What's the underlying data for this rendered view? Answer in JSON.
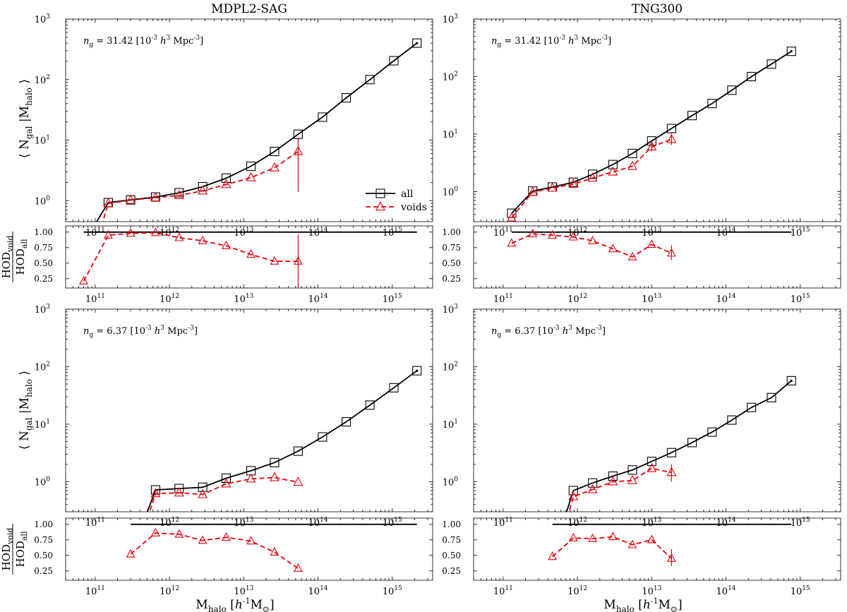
{
  "figure": {
    "x_label_main": "M",
    "x_label_sub": "halo",
    "x_label_unit_pre": " [",
    "x_label_unit_h": "h",
    "x_label_unit_exp": "-1",
    "x_label_unit_M": "M",
    "x_label_unit_sun": "⊙",
    "x_label_unit_post": "]",
    "y_label_main_open": "⟨ N",
    "y_label_main_sub": "gal",
    "y_label_main_mid": " |M",
    "y_label_main_sub2": "halo",
    "y_label_main_close": " ⟩",
    "ratio_num_main": "HOD",
    "ratio_num_sub": "void",
    "ratio_den_main": "HOD",
    "ratio_den_sub": "all",
    "legend_all": "all",
    "legend_voids": "voids",
    "ng_prefix": "n",
    "ng_sub": "g",
    "ng_unit_open": " [10",
    "ng_unit_exp1": "-3",
    "ng_unit_h": "h",
    "ng_unit_exp2": "3",
    "ng_unit_mpc": " Mpc",
    "ng_unit_exp3": "-3",
    "ng_unit_close": "]"
  },
  "colors": {
    "all": "#000000",
    "voids": "#e8000b",
    "axis": "#000000"
  },
  "chart_data": [
    {
      "type": "line",
      "panel": "top-left",
      "title": "MDPL2-SAG",
      "ng_value": "= 31.42",
      "xscale": "log",
      "yscale": "log",
      "xlim": [
        40000000000.0,
        3500000000000000.0
      ],
      "ylim": [
        0.45,
        1000
      ],
      "xticks": [
        "10^11",
        "10^12",
        "10^13",
        "10^14",
        "10^15"
      ],
      "yticks": [
        "10^0",
        "10^1",
        "10^2",
        "10^3"
      ],
      "legend_position": "right",
      "series": [
        {
          "name": "all",
          "x": [
            70000000000.0,
            150000000000.0,
            300000000000.0,
            650000000000.0,
            1350000000000.0,
            2800000000000.0,
            5800000000000.0,
            12500000000000.0,
            26000000000000.0,
            54000000000000.0,
            115000000000000.0,
            240000000000000.0,
            500000000000000.0,
            1050000000000000.0,
            2150000000000000.0
          ],
          "y": [
            0.2,
            0.93,
            1.03,
            1.15,
            1.35,
            1.7,
            2.35,
            3.7,
            6.5,
            12.5,
            24,
            50,
            100,
            205,
            400
          ],
          "markers_from": 1
        },
        {
          "name": "voids",
          "x": [
            70000000000.0,
            150000000000.0,
            300000000000.0,
            650000000000.0,
            1350000000000.0,
            2800000000000.0,
            5800000000000.0,
            12500000000000.0,
            26000000000000.0,
            54000000000000.0
          ],
          "y": [
            0.04,
            0.9,
            1.02,
            1.12,
            1.22,
            1.45,
            1.85,
            2.4,
            3.5,
            6.5
          ],
          "markers_from": 1,
          "errorbars": [
            {
              "x": 54000000000000.0,
              "lo": 1.4,
              "hi": 11
            }
          ]
        }
      ]
    },
    {
      "type": "line",
      "panel": "top-left-ratio",
      "xscale": "log",
      "yscale": "linear",
      "xlim": [
        40000000000.0,
        3500000000000000.0
      ],
      "ylim": [
        0.1,
        1.1
      ],
      "yticks": [
        "0.25",
        "0.50",
        "0.75",
        "1.00"
      ],
      "xticks": [
        "10^11",
        "10^12",
        "10^13",
        "10^14",
        "10^15"
      ],
      "series": [
        {
          "name": "unity",
          "x": [
            70000000000.0,
            2150000000000000.0
          ],
          "y": [
            1.0,
            1.0
          ]
        },
        {
          "name": "voids/all",
          "x": [
            70000000000.0,
            150000000000.0,
            300000000000.0,
            650000000000.0,
            1350000000000.0,
            2800000000000.0,
            5800000000000.0,
            12500000000000.0,
            26000000000000.0,
            54000000000000.0
          ],
          "y": [
            0.21,
            0.95,
            0.98,
            0.99,
            0.91,
            0.86,
            0.78,
            0.64,
            0.53,
            0.53
          ],
          "errorbars": [
            {
              "x": 54000000000000.0,
              "lo": 0.08,
              "hi": 0.96
            }
          ]
        }
      ]
    },
    {
      "type": "line",
      "panel": "top-right",
      "title": "TNG300",
      "ng_value": "= 31.42",
      "xscale": "log",
      "yscale": "log",
      "xlim": [
        40000000000.0,
        3500000000000000.0
      ],
      "ylim": [
        0.3,
        1000
      ],
      "xticks": [
        "10^11",
        "10^12",
        "10^13",
        "10^14",
        "10^15"
      ],
      "yticks": [
        "10^0",
        "10^1",
        "10^2",
        "10^3"
      ],
      "series": [
        {
          "name": "all",
          "x": [
            130000000000.0,
            250000000000.0,
            460000000000.0,
            880000000000.0,
            1600000000000.0,
            3000000000000.0,
            5500000000000.0,
            10000000000000.0,
            18500000000000.0,
            35000000000000.0,
            65000000000000.0,
            120000000000000.0,
            220000000000000.0,
            410000000000000.0,
            760000000000000.0
          ],
          "y": [
            0.42,
            1.02,
            1.2,
            1.45,
            2.0,
            2.95,
            4.6,
            7.6,
            12.5,
            21,
            34,
            58,
            100,
            165,
            275
          ]
        },
        {
          "name": "voids",
          "x": [
            130000000000.0,
            250000000000.0,
            460000000000.0,
            880000000000.0,
            1600000000000.0,
            3000000000000.0,
            5500000000000.0,
            10000000000000.0,
            18500000000000.0
          ],
          "y": [
            0.35,
            0.98,
            1.15,
            1.35,
            1.72,
            2.2,
            2.75,
            6.0,
            8.1
          ],
          "errorbars": [
            {
              "x": 10000000000000.0,
              "lo": 5.0,
              "hi": 7.3
            },
            {
              "x": 18500000000000.0,
              "lo": 6.5,
              "hi": 10.2
            }
          ]
        }
      ]
    },
    {
      "type": "line",
      "panel": "top-right-ratio",
      "xscale": "log",
      "yscale": "linear",
      "xlim": [
        40000000000.0,
        3500000000000000.0
      ],
      "ylim": [
        0.1,
        1.1
      ],
      "yticks": [
        "0.25",
        "0.50",
        "0.75",
        "1.00"
      ],
      "xticks": [
        "10^11",
        "10^12",
        "10^13",
        "10^14",
        "10^15"
      ],
      "series": [
        {
          "name": "unity",
          "x": [
            130000000000.0,
            760000000000000.0
          ],
          "y": [
            1.0,
            1.0
          ]
        },
        {
          "name": "voids/all",
          "x": [
            130000000000.0,
            250000000000.0,
            460000000000.0,
            880000000000.0,
            1600000000000.0,
            3000000000000.0,
            5500000000000.0,
            10000000000000.0,
            18500000000000.0
          ],
          "y": [
            0.82,
            0.97,
            0.95,
            0.92,
            0.86,
            0.73,
            0.6,
            0.8,
            0.66
          ],
          "errorbars": [
            {
              "x": 18500000000000.0,
              "lo": 0.55,
              "hi": 0.79
            }
          ]
        }
      ]
    },
    {
      "type": "line",
      "panel": "bottom-left",
      "ng_value": "= 6.37",
      "xscale": "log",
      "yscale": "log",
      "xlim": [
        40000000000.0,
        3500000000000000.0
      ],
      "ylim": [
        0.3,
        1000
      ],
      "xticks": [
        "10^11",
        "10^12",
        "10^13",
        "10^14",
        "10^15"
      ],
      "yticks": [
        "10^0",
        "10^1",
        "10^2",
        "10^3"
      ],
      "series": [
        {
          "name": "all",
          "x": [
            300000000000.0,
            650000000000.0,
            1350000000000.0,
            2800000000000.0,
            5800000000000.0,
            12500000000000.0,
            26000000000000.0,
            54000000000000.0,
            115000000000000.0,
            240000000000000.0,
            500000000000000.0,
            1050000000000000.0,
            2150000000000000.0
          ],
          "y": [
            0.05,
            0.72,
            0.76,
            0.8,
            1.15,
            1.55,
            2.15,
            3.4,
            6.0,
            11,
            21.5,
            43,
            85
          ],
          "markers_from": 1
        },
        {
          "name": "voids",
          "x": [
            300000000000.0,
            650000000000.0,
            1350000000000.0,
            2800000000000.0,
            5800000000000.0,
            12500000000000.0,
            26000000000000.0,
            54000000000000.0
          ],
          "y": [
            0.03,
            0.62,
            0.64,
            0.6,
            0.92,
            1.12,
            1.18,
            0.98
          ],
          "markers_from": 1
        }
      ]
    },
    {
      "type": "line",
      "panel": "bottom-left-ratio",
      "xscale": "log",
      "yscale": "linear",
      "xlim": [
        40000000000.0,
        3500000000000000.0
      ],
      "ylim": [
        0.1,
        1.1
      ],
      "yticks": [
        "0.25",
        "0.50",
        "0.75",
        "1.00"
      ],
      "xticks": [
        "10^11",
        "10^12",
        "10^13",
        "10^14",
        "10^15"
      ],
      "series": [
        {
          "name": "unity",
          "x": [
            300000000000.0,
            2150000000000000.0
          ],
          "y": [
            1.0,
            1.0
          ]
        },
        {
          "name": "voids/all",
          "x": [
            300000000000.0,
            650000000000.0,
            1350000000000.0,
            2800000000000.0,
            5800000000000.0,
            12500000000000.0,
            26000000000000.0,
            54000000000000.0
          ],
          "y": [
            0.52,
            0.86,
            0.84,
            0.74,
            0.79,
            0.73,
            0.55,
            0.29
          ]
        }
      ]
    },
    {
      "type": "line",
      "panel": "bottom-right",
      "ng_value": "= 6.37",
      "xscale": "log",
      "yscale": "log",
      "xlim": [
        40000000000.0,
        3500000000000000.0
      ],
      "ylim": [
        0.3,
        1000
      ],
      "xticks": [
        "10^11",
        "10^12",
        "10^13",
        "10^14",
        "10^15"
      ],
      "yticks": [
        "10^0",
        "10^1",
        "10^2",
        "10^3"
      ],
      "series": [
        {
          "name": "all",
          "x": [
            460000000000.0,
            880000000000.0,
            1600000000000.0,
            3000000000000.0,
            5500000000000.0,
            10000000000000.0,
            18500000000000.0,
            35000000000000.0,
            65000000000000.0,
            120000000000000.0,
            220000000000000.0,
            410000000000000.0,
            760000000000000.0
          ],
          "y": [
            0.05,
            0.7,
            0.95,
            1.25,
            1.6,
            2.25,
            3.2,
            4.8,
            7.3,
            11.8,
            19.5,
            29,
            57
          ],
          "markers_from": 1
        },
        {
          "name": "voids",
          "x": [
            460000000000.0,
            880000000000.0,
            1600000000000.0,
            3000000000000.0,
            5500000000000.0,
            10000000000000.0,
            18500000000000.0
          ],
          "y": [
            0.03,
            0.55,
            0.73,
            1.0,
            1.05,
            1.7,
            1.45
          ],
          "markers_from": 1,
          "errorbars": [
            {
              "x": 18500000000000.0,
              "lo": 1.0,
              "hi": 2.0
            }
          ]
        }
      ]
    },
    {
      "type": "line",
      "panel": "bottom-right-ratio",
      "xscale": "log",
      "yscale": "linear",
      "xlim": [
        40000000000.0,
        3500000000000000.0
      ],
      "ylim": [
        0.1,
        1.1
      ],
      "yticks": [
        "0.25",
        "0.50",
        "0.75",
        "1.00"
      ],
      "xticks": [
        "10^11",
        "10^12",
        "10^13",
        "10^14",
        "10^15"
      ],
      "series": [
        {
          "name": "unity",
          "x": [
            460000000000.0,
            760000000000000.0
          ],
          "y": [
            1.0,
            1.0
          ]
        },
        {
          "name": "voids/all",
          "x": [
            460000000000.0,
            880000000000.0,
            1600000000000.0,
            3000000000000.0,
            5500000000000.0,
            10000000000000.0,
            18500000000000.0
          ],
          "y": [
            0.48,
            0.78,
            0.77,
            0.8,
            0.67,
            0.75,
            0.45
          ],
          "errorbars": [
            {
              "x": 18500000000000.0,
              "lo": 0.33,
              "hi": 0.6
            }
          ]
        }
      ]
    }
  ]
}
